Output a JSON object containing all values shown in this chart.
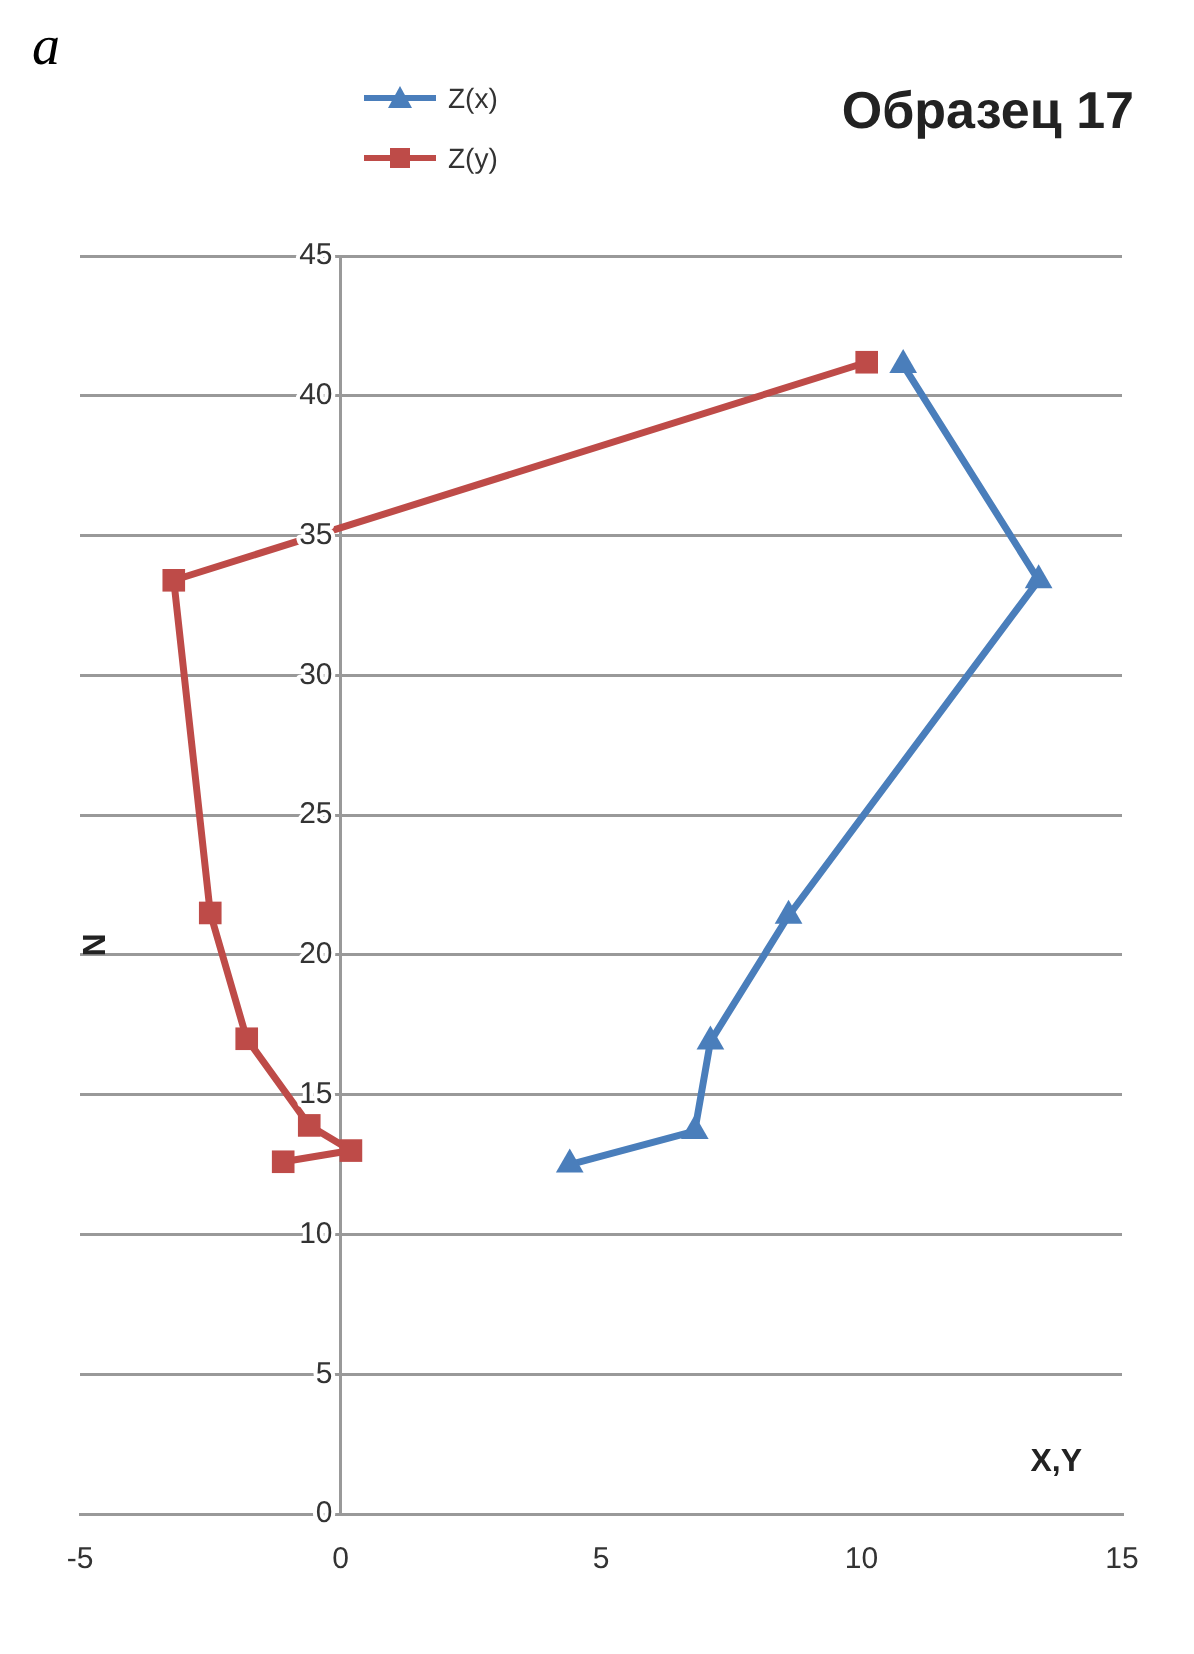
{
  "chart_data": {
    "type": "line",
    "title": "Образец 17",
    "xlabel": "X,Y",
    "ylabel": "N",
    "annotations": [
      "a"
    ],
    "xlim": [
      -5,
      15
    ],
    "xticks": [
      -5,
      0,
      5,
      10,
      15
    ],
    "ylim": [
      0,
      45
    ],
    "yticks": [
      0,
      5,
      10,
      15,
      20,
      25,
      30,
      35,
      40,
      45
    ],
    "grid": "y",
    "legend": "top left",
    "series": [
      {
        "name": "Z(x)",
        "color": "#4a7ebb",
        "marker": "triangle",
        "x": [
          4.4,
          6.8,
          7.1,
          8.6,
          13.4,
          10.8
        ],
        "values": [
          12.5,
          13.7,
          16.9,
          21.4,
          33.4,
          41.1
        ]
      },
      {
        "name": "Z(y)",
        "color": "#be4b48",
        "marker": "square",
        "x": [
          -1.1,
          0.2,
          -0.6,
          -1.8,
          -2.5,
          -3.2,
          10.1
        ],
        "values": [
          12.6,
          13.0,
          13.9,
          17.0,
          21.5,
          33.4,
          41.2
        ]
      }
    ]
  }
}
